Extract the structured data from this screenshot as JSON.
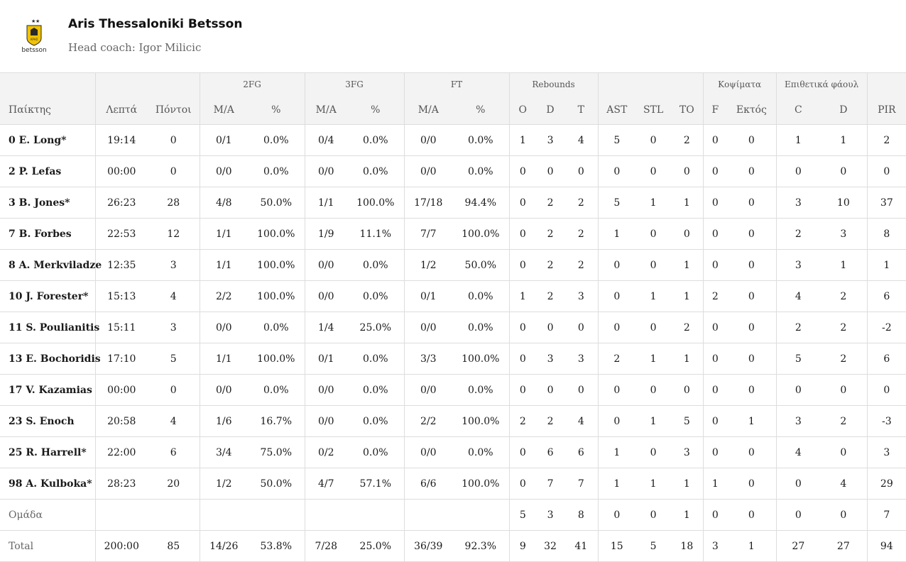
{
  "team": {
    "name": "Aris Thessaloniki Betsson",
    "coach": "Head coach: Igor Milicic",
    "logo_text": "betsson",
    "logo_label": "ΑΡΗΣ"
  },
  "headers": {
    "groups": {
      "fg2": "2FG",
      "fg3": "3FG",
      "ft": "FT",
      "reb": "Rebounds",
      "blocks": "Κοψίματα",
      "fouls": "Επιθετικά φάουλ"
    },
    "cols": {
      "player": "Παίκτης",
      "min": "Λεπτά",
      "pts": "Πόντοι",
      "fg2_ma": "M/A",
      "fg2_pct": "%",
      "fg3_ma": "M/A",
      "fg3_pct": "%",
      "ft_ma": "M/A",
      "ft_pct": "%",
      "reb_o": "O",
      "reb_d": "D",
      "reb_t": "T",
      "ast": "AST",
      "stl": "STL",
      "to": "TO",
      "blk_f": "F",
      "blk_out": "Εκτός",
      "foul_c": "C",
      "foul_d": "D",
      "pir": "PIR"
    }
  },
  "rows": [
    {
      "player": "0 E. Long*",
      "min": "19:14",
      "pts": "0",
      "fg2_ma": "0/1",
      "fg2_pct": "0.0%",
      "fg3_ma": "0/4",
      "fg3_pct": "0.0%",
      "ft_ma": "0/0",
      "ft_pct": "0.0%",
      "reb_o": "1",
      "reb_d": "3",
      "reb_t": "4",
      "ast": "5",
      "stl": "0",
      "to": "2",
      "blk_f": "0",
      "blk_out": "0",
      "foul_c": "1",
      "foul_d": "1",
      "pir": "2"
    },
    {
      "player": "2 P. Lefas",
      "min": "00:00",
      "pts": "0",
      "fg2_ma": "0/0",
      "fg2_pct": "0.0%",
      "fg3_ma": "0/0",
      "fg3_pct": "0.0%",
      "ft_ma": "0/0",
      "ft_pct": "0.0%",
      "reb_o": "0",
      "reb_d": "0",
      "reb_t": "0",
      "ast": "0",
      "stl": "0",
      "to": "0",
      "blk_f": "0",
      "blk_out": "0",
      "foul_c": "0",
      "foul_d": "0",
      "pir": "0"
    },
    {
      "player": "3 B. Jones*",
      "min": "26:23",
      "pts": "28",
      "fg2_ma": "4/8",
      "fg2_pct": "50.0%",
      "fg3_ma": "1/1",
      "fg3_pct": "100.0%",
      "ft_ma": "17/18",
      "ft_pct": "94.4%",
      "reb_o": "0",
      "reb_d": "2",
      "reb_t": "2",
      "ast": "5",
      "stl": "1",
      "to": "1",
      "blk_f": "0",
      "blk_out": "0",
      "foul_c": "3",
      "foul_d": "10",
      "pir": "37"
    },
    {
      "player": "7 B. Forbes",
      "min": "22:53",
      "pts": "12",
      "fg2_ma": "1/1",
      "fg2_pct": "100.0%",
      "fg3_ma": "1/9",
      "fg3_pct": "11.1%",
      "ft_ma": "7/7",
      "ft_pct": "100.0%",
      "reb_o": "0",
      "reb_d": "2",
      "reb_t": "2",
      "ast": "1",
      "stl": "0",
      "to": "0",
      "blk_f": "0",
      "blk_out": "0",
      "foul_c": "2",
      "foul_d": "3",
      "pir": "8"
    },
    {
      "player": "8 A. Merkviladze",
      "min": "12:35",
      "pts": "3",
      "fg2_ma": "1/1",
      "fg2_pct": "100.0%",
      "fg3_ma": "0/0",
      "fg3_pct": "0.0%",
      "ft_ma": "1/2",
      "ft_pct": "50.0%",
      "reb_o": "0",
      "reb_d": "2",
      "reb_t": "2",
      "ast": "0",
      "stl": "0",
      "to": "1",
      "blk_f": "0",
      "blk_out": "0",
      "foul_c": "3",
      "foul_d": "1",
      "pir": "1"
    },
    {
      "player": "10 J. Forester*",
      "min": "15:13",
      "pts": "4",
      "fg2_ma": "2/2",
      "fg2_pct": "100.0%",
      "fg3_ma": "0/0",
      "fg3_pct": "0.0%",
      "ft_ma": "0/1",
      "ft_pct": "0.0%",
      "reb_o": "1",
      "reb_d": "2",
      "reb_t": "3",
      "ast": "0",
      "stl": "1",
      "to": "1",
      "blk_f": "2",
      "blk_out": "0",
      "foul_c": "4",
      "foul_d": "2",
      "pir": "6"
    },
    {
      "player": "11 S. Poulianitis",
      "min": "15:11",
      "pts": "3",
      "fg2_ma": "0/0",
      "fg2_pct": "0.0%",
      "fg3_ma": "1/4",
      "fg3_pct": "25.0%",
      "ft_ma": "0/0",
      "ft_pct": "0.0%",
      "reb_o": "0",
      "reb_d": "0",
      "reb_t": "0",
      "ast": "0",
      "stl": "0",
      "to": "2",
      "blk_f": "0",
      "blk_out": "0",
      "foul_c": "2",
      "foul_d": "2",
      "pir": "-2"
    },
    {
      "player": "13 E. Bochoridis",
      "min": "17:10",
      "pts": "5",
      "fg2_ma": "1/1",
      "fg2_pct": "100.0%",
      "fg3_ma": "0/1",
      "fg3_pct": "0.0%",
      "ft_ma": "3/3",
      "ft_pct": "100.0%",
      "reb_o": "0",
      "reb_d": "3",
      "reb_t": "3",
      "ast": "2",
      "stl": "1",
      "to": "1",
      "blk_f": "0",
      "blk_out": "0",
      "foul_c": "5",
      "foul_d": "2",
      "pir": "6"
    },
    {
      "player": "17 V. Kazamias",
      "min": "00:00",
      "pts": "0",
      "fg2_ma": "0/0",
      "fg2_pct": "0.0%",
      "fg3_ma": "0/0",
      "fg3_pct": "0.0%",
      "ft_ma": "0/0",
      "ft_pct": "0.0%",
      "reb_o": "0",
      "reb_d": "0",
      "reb_t": "0",
      "ast": "0",
      "stl": "0",
      "to": "0",
      "blk_f": "0",
      "blk_out": "0",
      "foul_c": "0",
      "foul_d": "0",
      "pir": "0"
    },
    {
      "player": "23 S. Enoch",
      "min": "20:58",
      "pts": "4",
      "fg2_ma": "1/6",
      "fg2_pct": "16.7%",
      "fg3_ma": "0/0",
      "fg3_pct": "0.0%",
      "ft_ma": "2/2",
      "ft_pct": "100.0%",
      "reb_o": "2",
      "reb_d": "2",
      "reb_t": "4",
      "ast": "0",
      "stl": "1",
      "to": "5",
      "blk_f": "0",
      "blk_out": "1",
      "foul_c": "3",
      "foul_d": "2",
      "pir": "-3"
    },
    {
      "player": "25 R. Harrell*",
      "min": "22:00",
      "pts": "6",
      "fg2_ma": "3/4",
      "fg2_pct": "75.0%",
      "fg3_ma": "0/2",
      "fg3_pct": "0.0%",
      "ft_ma": "0/0",
      "ft_pct": "0.0%",
      "reb_o": "0",
      "reb_d": "6",
      "reb_t": "6",
      "ast": "1",
      "stl": "0",
      "to": "3",
      "blk_f": "0",
      "blk_out": "0",
      "foul_c": "4",
      "foul_d": "0",
      "pir": "3"
    },
    {
      "player": "98 A. Kulboka*",
      "min": "28:23",
      "pts": "20",
      "fg2_ma": "1/2",
      "fg2_pct": "50.0%",
      "fg3_ma": "4/7",
      "fg3_pct": "57.1%",
      "ft_ma": "6/6",
      "ft_pct": "100.0%",
      "reb_o": "0",
      "reb_d": "7",
      "reb_t": "7",
      "ast": "1",
      "stl": "1",
      "to": "1",
      "blk_f": "1",
      "blk_out": "0",
      "foul_c": "0",
      "foul_d": "4",
      "pir": "29"
    }
  ],
  "team_row": {
    "player": "Ομάδα",
    "min": "",
    "pts": "",
    "fg2_ma": "",
    "fg2_pct": "",
    "fg3_ma": "",
    "fg3_pct": "",
    "ft_ma": "",
    "ft_pct": "",
    "reb_o": "5",
    "reb_d": "3",
    "reb_t": "8",
    "ast": "0",
    "stl": "0",
    "to": "1",
    "blk_f": "0",
    "blk_out": "0",
    "foul_c": "0",
    "foul_d": "0",
    "pir": "7"
  },
  "total_row": {
    "player": "Total",
    "min": "200:00",
    "pts": "85",
    "fg2_ma": "14/26",
    "fg2_pct": "53.8%",
    "fg3_ma": "7/28",
    "fg3_pct": "25.0%",
    "ft_ma": "36/39",
    "ft_pct": "92.3%",
    "reb_o": "9",
    "reb_d": "32",
    "reb_t": "41",
    "ast": "15",
    "stl": "5",
    "to": "18",
    "blk_f": "3",
    "blk_out": "1",
    "foul_c": "27",
    "foul_d": "27",
    "pir": "94"
  },
  "colors": {
    "header_bg": "#f3f3f3",
    "border": "#dddddd",
    "logo_yellow": "#f2c200",
    "logo_dark": "#2a2a2a"
  }
}
